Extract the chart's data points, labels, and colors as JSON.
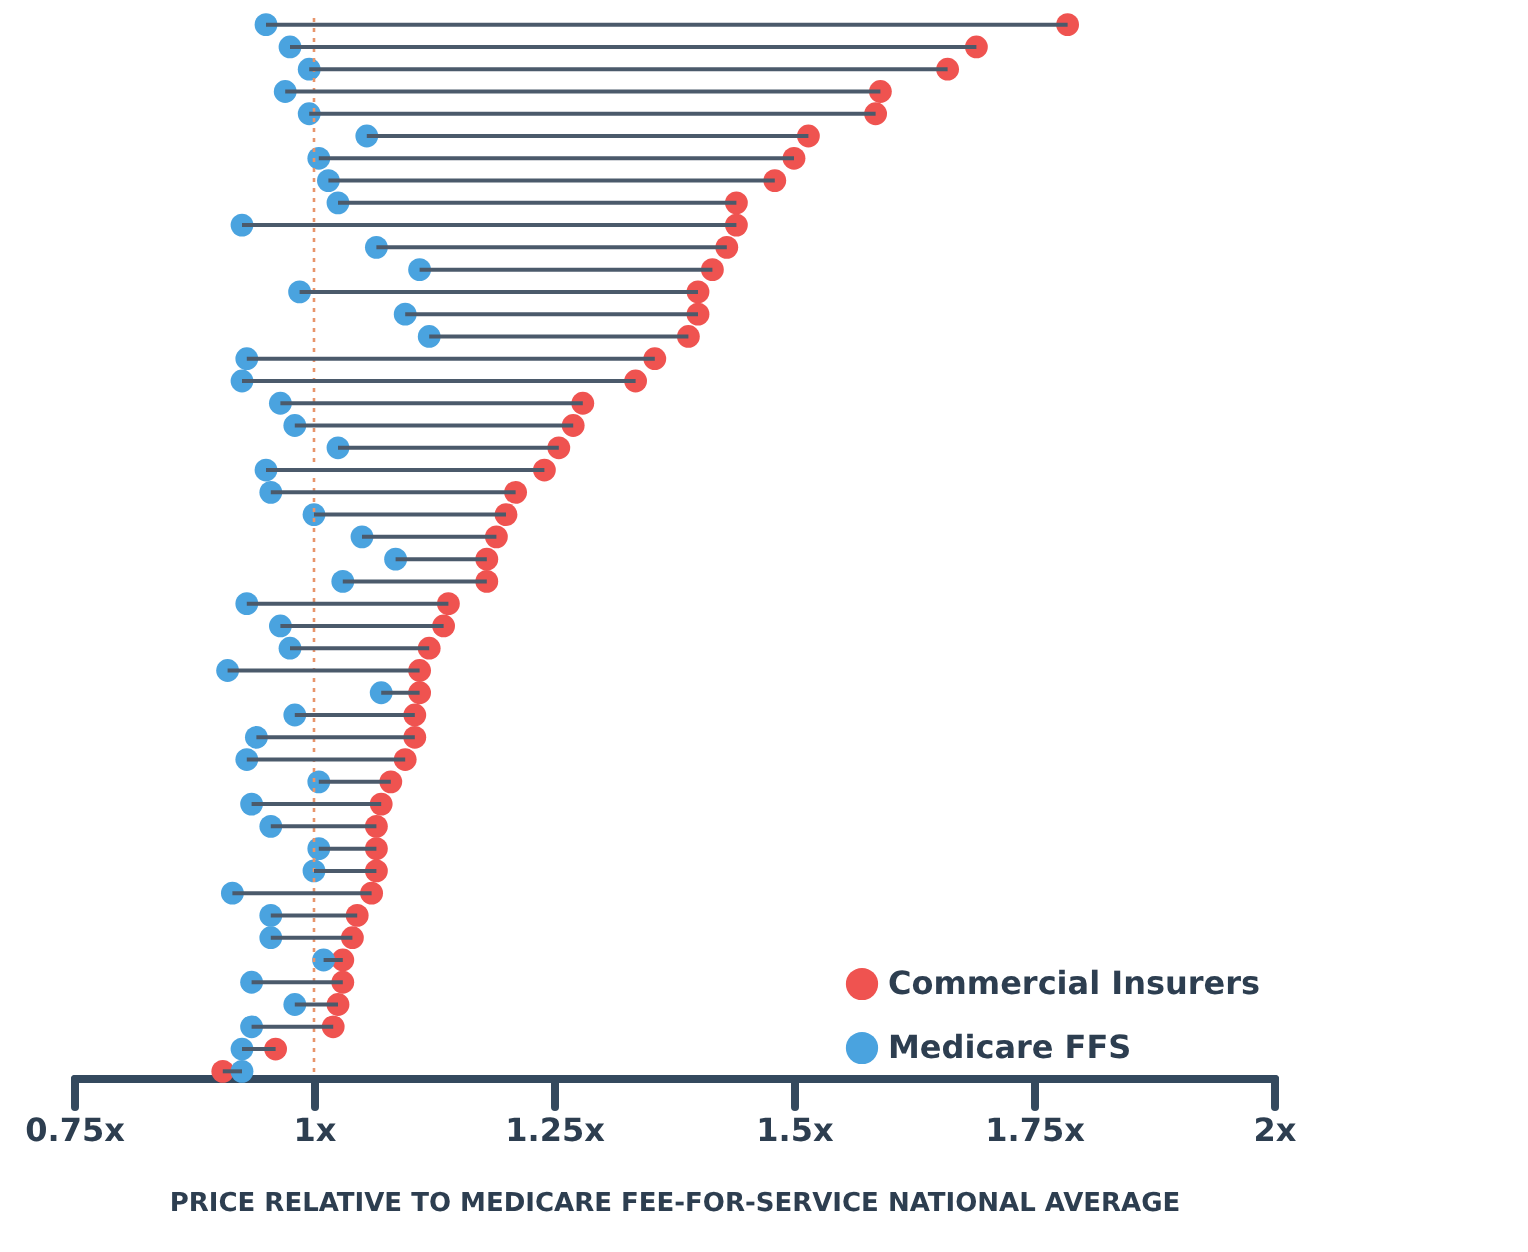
{
  "chart_data": {
    "type": "scatter",
    "orientation": "horizontal",
    "xlabel": "PRICE RELATIVE TO MEDICARE FEE-FOR-SERVICE NATIONAL AVERAGE",
    "categories": [
      null,
      null,
      null,
      null,
      null,
      null,
      null,
      null,
      null,
      null,
      null,
      null,
      null,
      null,
      null,
      null,
      null,
      null,
      null,
      null,
      null,
      null,
      null,
      null,
      null,
      null,
      null,
      null,
      null,
      null,
      null,
      null,
      null,
      null,
      null,
      null,
      null,
      null,
      null,
      null,
      null,
      null,
      null,
      null,
      null,
      null,
      null,
      null
    ],
    "series": [
      {
        "name": "Commercial Insurers",
        "color": "#ef5350",
        "values": [
          1.785,
          1.69,
          1.66,
          1.59,
          1.585,
          1.515,
          1.5,
          1.48,
          1.44,
          1.44,
          1.43,
          1.415,
          1.4,
          1.4,
          1.39,
          1.355,
          1.335,
          1.28,
          1.27,
          1.255,
          1.24,
          1.21,
          1.2,
          1.19,
          1.18,
          1.18,
          1.14,
          1.135,
          1.12,
          1.11,
          1.11,
          1.105,
          1.105,
          1.095,
          1.08,
          1.07,
          1.065,
          1.065,
          1.065,
          1.06,
          1.045,
          1.04,
          1.03,
          1.03,
          1.025,
          1.02,
          0.96,
          0.905
        ]
      },
      {
        "name": "Medicare FFS",
        "color": "#4aa3df",
        "values": [
          0.95,
          0.975,
          0.995,
          0.97,
          0.995,
          1.055,
          1.005,
          1.015,
          1.025,
          0.925,
          1.065,
          1.11,
          0.985,
          1.095,
          1.12,
          0.93,
          0.925,
          0.965,
          0.98,
          1.025,
          0.95,
          0.955,
          1.0,
          1.05,
          1.085,
          1.03,
          0.93,
          0.965,
          0.975,
          0.91,
          1.07,
          0.98,
          0.94,
          0.93,
          1.005,
          0.935,
          0.955,
          1.005,
          1.0,
          0.915,
          0.955,
          0.955,
          1.01,
          0.935,
          0.98,
          0.935,
          0.925,
          0.925
        ]
      }
    ],
    "xlim": [
      0.75,
      2
    ],
    "xticks": [
      {
        "value": 0.75,
        "label": "0.75x"
      },
      {
        "value": 1,
        "label": "1x"
      },
      {
        "value": 1.25,
        "label": "1.25x"
      },
      {
        "value": 1.5,
        "label": "1.5x"
      },
      {
        "value": 1.75,
        "label": "1.75x"
      },
      {
        "value": 2,
        "label": "2x"
      }
    ],
    "ref_lines": [
      {
        "axis": "x",
        "value": 1,
        "color": "#e8956b",
        "line_style": "dotted"
      }
    ],
    "grid": false,
    "legend": "bottom right",
    "marker": "circle",
    "tick_labels": "x"
  }
}
